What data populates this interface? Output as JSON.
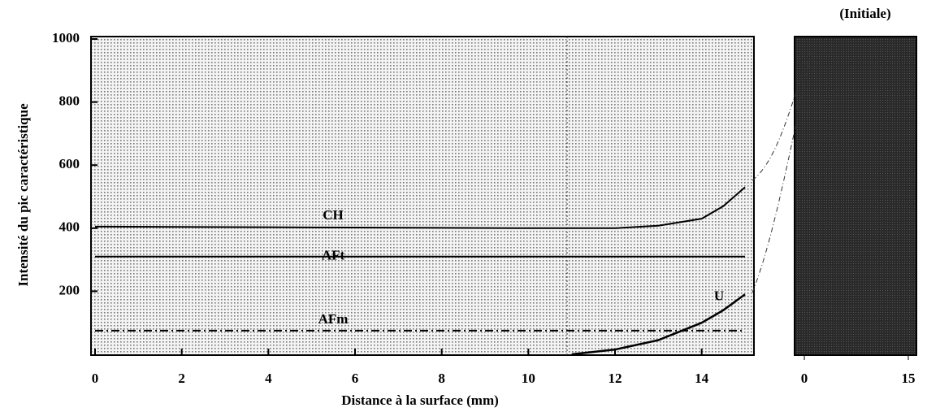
{
  "chart_data": [
    {
      "type": "line",
      "x_label": "Distance à la surface (mm)",
      "y_label": "Intensité du  pic caractéristique",
      "x": [
        0,
        2,
        4,
        6,
        8,
        10,
        11,
        12,
        13,
        14,
        14.5,
        15
      ],
      "series": [
        {
          "name": "CH",
          "color": "#000000",
          "style": "solid",
          "values": [
            405,
            404,
            403,
            402,
            401,
            400,
            400,
            400,
            408,
            430,
            470,
            530
          ]
        },
        {
          "name": "AFt",
          "color": "#000000",
          "style": "solid",
          "values": [
            310,
            310,
            310,
            310,
            310,
            310,
            310,
            310,
            310,
            310,
            310,
            310
          ]
        },
        {
          "name": "AFm",
          "color": "#000000",
          "style": "dashdot",
          "values": [
            75,
            75,
            75,
            75,
            75,
            75,
            75,
            75,
            75,
            75,
            75,
            75
          ]
        },
        {
          "name": "U",
          "color": "#000000",
          "style": "solid",
          "values": [
            null,
            null,
            null,
            null,
            null,
            null,
            0,
            15,
            45,
            100,
            140,
            190
          ]
        }
      ],
      "xlim": [
        0,
        15
      ],
      "xticks": [
        0,
        2,
        4,
        6,
        8,
        10,
        12,
        14
      ],
      "ylim": [
        0,
        1000
      ],
      "yticks": [
        200,
        400,
        600,
        800,
        1000
      ]
    },
    {
      "type": "panel",
      "title": "(Initiale)",
      "xlim": [
        0,
        15
      ],
      "xticks": [
        0,
        15
      ]
    }
  ]
}
